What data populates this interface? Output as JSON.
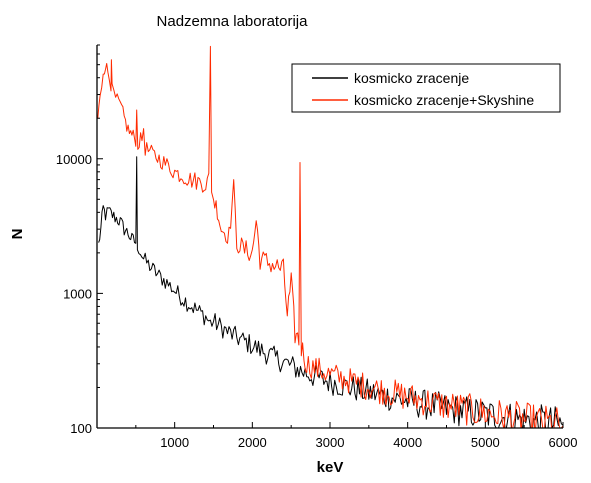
{
  "chart_data": {
    "type": "line",
    "title": "Nadzemna laboratorija",
    "xlabel": "keV",
    "ylabel": "N",
    "xlim": [
      0,
      6000
    ],
    "ylim": [
      100,
      70000
    ],
    "yscale": "log",
    "grid": false,
    "legend_position": "top-right",
    "x_ticks": [
      1000,
      2000,
      3000,
      4000,
      5000,
      6000
    ],
    "x_tick_labels": [
      "1000",
      "2000",
      "3000",
      "4000",
      "5000",
      "6000"
    ],
    "y_ticks": [
      100,
      1000,
      10000
    ],
    "y_tick_labels": [
      "100",
      "1000",
      "10000"
    ],
    "series": [
      {
        "name": "kosmicko zracenje",
        "color": "#000000",
        "points": [
          [
            20,
            2300
          ],
          [
            50,
            3000
          ],
          [
            80,
            4300
          ],
          [
            110,
            3800
          ],
          [
            150,
            4100
          ],
          [
            200,
            3800
          ],
          [
            250,
            3600
          ],
          [
            300,
            3400
          ],
          [
            350,
            3000
          ],
          [
            400,
            2800
          ],
          [
            450,
            2500
          ],
          [
            500,
            2400
          ],
          [
            511,
            9500
          ],
          [
            520,
            2300
          ],
          [
            600,
            1800
          ],
          [
            700,
            1550
          ],
          [
            800,
            1350
          ],
          [
            900,
            1200
          ],
          [
            1000,
            1050
          ],
          [
            1100,
            920
          ],
          [
            1200,
            820
          ],
          [
            1300,
            740
          ],
          [
            1400,
            670
          ],
          [
            1460,
            600
          ],
          [
            1500,
            620
          ],
          [
            1600,
            560
          ],
          [
            1700,
            510
          ],
          [
            1800,
            470
          ],
          [
            1900,
            440
          ],
          [
            2000,
            410
          ],
          [
            2100,
            380
          ],
          [
            2200,
            355
          ],
          [
            2300,
            330
          ],
          [
            2400,
            310
          ],
          [
            2500,
            290
          ],
          [
            2600,
            270
          ],
          [
            2700,
            255
          ],
          [
            2800,
            240
          ],
          [
            3000,
            220
          ],
          [
            3200,
            205
          ],
          [
            3400,
            190
          ],
          [
            3600,
            178
          ],
          [
            3800,
            168
          ],
          [
            4000,
            158
          ],
          [
            4200,
            150
          ],
          [
            4400,
            143
          ],
          [
            4600,
            137
          ],
          [
            4800,
            131
          ],
          [
            5000,
            126
          ],
          [
            5200,
            121
          ],
          [
            5400,
            116
          ],
          [
            5600,
            112
          ],
          [
            5800,
            108
          ],
          [
            6000,
            105
          ]
        ]
      },
      {
        "name": "kosmicko zracenje+Skyshine",
        "color": "#ff2a00",
        "points": [
          [
            10,
            20000
          ],
          [
            40,
            28000
          ],
          [
            80,
            45000
          ],
          [
            110,
            50000
          ],
          [
            140,
            44000
          ],
          [
            180,
            36000
          ],
          [
            186,
            60000
          ],
          [
            195,
            32000
          ],
          [
            240,
            28000
          ],
          [
            300,
            25000
          ],
          [
            350,
            20000
          ],
          [
            400,
            16500
          ],
          [
            450,
            15000
          ],
          [
            500,
            14000
          ],
          [
            511,
            22000
          ],
          [
            525,
            13000
          ],
          [
            580,
            14000
          ],
          [
            600,
            17000
          ],
          [
            620,
            12000
          ],
          [
            700,
            11000
          ],
          [
            800,
            10000
          ],
          [
            900,
            9000
          ],
          [
            1000,
            8000
          ],
          [
            1100,
            7500
          ],
          [
            1200,
            7000
          ],
          [
            1300,
            6800
          ],
          [
            1400,
            6500
          ],
          [
            1440,
            7000
          ],
          [
            1460,
            65000
          ],
          [
            1475,
            6200
          ],
          [
            1500,
            5000
          ],
          [
            1550,
            4200
          ],
          [
            1600,
            3000
          ],
          [
            1700,
            2700
          ],
          [
            1760,
            6000
          ],
          [
            1800,
            2400
          ],
          [
            1900,
            2100
          ],
          [
            2000,
            2000
          ],
          [
            2050,
            3500
          ],
          [
            2100,
            1800
          ],
          [
            2200,
            1700
          ],
          [
            2300,
            1600
          ],
          [
            2400,
            1500
          ],
          [
            2450,
            700
          ],
          [
            2500,
            1200
          ],
          [
            2550,
            500
          ],
          [
            2600,
            450
          ],
          [
            2614,
            9500
          ],
          [
            2630,
            400
          ],
          [
            2700,
            300
          ],
          [
            2800,
            280
          ],
          [
            3000,
            250
          ],
          [
            3200,
            230
          ],
          [
            3400,
            210
          ],
          [
            3600,
            195
          ],
          [
            3800,
            182
          ],
          [
            4000,
            170
          ],
          [
            4200,
            160
          ],
          [
            4400,
            151
          ],
          [
            4600,
            143
          ],
          [
            4800,
            136
          ],
          [
            5000,
            129
          ],
          [
            5200,
            123
          ],
          [
            5400,
            117
          ],
          [
            5600,
            112
          ],
          [
            5800,
            108
          ],
          [
            6000,
            104
          ]
        ]
      }
    ]
  }
}
